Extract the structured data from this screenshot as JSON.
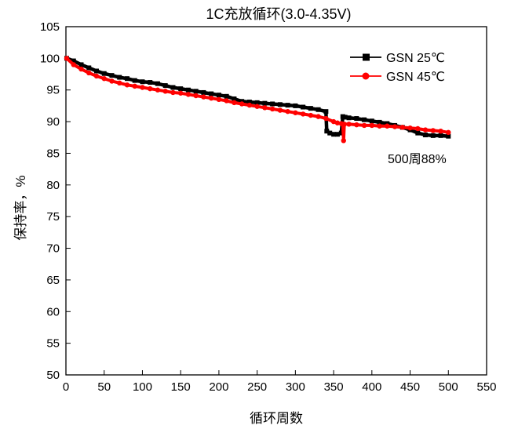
{
  "chart_data": {
    "type": "line",
    "title": "1C充放循环(3.0-4.35V)",
    "xlabel": "循环周数",
    "ylabel": "保持率，%",
    "xlim": [
      0,
      550
    ],
    "ylim": [
      50,
      105
    ],
    "xticks": [
      0,
      50,
      100,
      150,
      200,
      250,
      300,
      350,
      400,
      450,
      500,
      550
    ],
    "yticks": [
      50,
      55,
      60,
      65,
      70,
      75,
      80,
      85,
      90,
      95,
      100,
      105
    ],
    "grid": false,
    "legend_position": "top-right",
    "annotation": "500周88%",
    "series": [
      {
        "name": "GSN 25℃",
        "color": "#000000",
        "marker": "square",
        "x": [
          1,
          10,
          20,
          30,
          40,
          50,
          60,
          70,
          80,
          90,
          100,
          110,
          120,
          130,
          140,
          150,
          160,
          170,
          180,
          190,
          200,
          210,
          220,
          230,
          240,
          250,
          260,
          270,
          280,
          290,
          300,
          310,
          320,
          330,
          340,
          341,
          345,
          350,
          355,
          360,
          362,
          365,
          370,
          380,
          390,
          400,
          410,
          420,
          430,
          440,
          450,
          460,
          470,
          480,
          490,
          500
        ],
        "y": [
          100,
          99.6,
          99.0,
          98.5,
          98.0,
          97.6,
          97.3,
          97.0,
          96.8,
          96.5,
          96.3,
          96.2,
          96.0,
          95.7,
          95.4,
          95.2,
          95.0,
          94.8,
          94.6,
          94.4,
          94.2,
          94.0,
          93.6,
          93.2,
          93.1,
          93.0,
          92.9,
          92.8,
          92.7,
          92.6,
          92.5,
          92.3,
          92.1,
          91.9,
          91.6,
          88.5,
          88.2,
          88.0,
          88.0,
          88.2,
          90.8,
          90.7,
          90.6,
          90.5,
          90.3,
          90.1,
          89.9,
          89.7,
          89.4,
          89.1,
          88.7,
          88.2,
          87.9,
          87.8,
          87.8,
          87.7
        ]
      },
      {
        "name": "GSN 45℃",
        "color": "#ff0000",
        "marker": "circle",
        "x": [
          1,
          10,
          20,
          30,
          40,
          50,
          60,
          70,
          80,
          90,
          100,
          110,
          120,
          130,
          140,
          150,
          160,
          170,
          180,
          190,
          200,
          210,
          220,
          230,
          240,
          250,
          260,
          270,
          280,
          290,
          300,
          310,
          320,
          330,
          340,
          350,
          355,
          360,
          362,
          363,
          364,
          370,
          380,
          390,
          400,
          410,
          420,
          430,
          440,
          450,
          460,
          470,
          480,
          490,
          500
        ],
        "y": [
          100,
          99.0,
          98.3,
          97.7,
          97.2,
          96.8,
          96.4,
          96.1,
          95.8,
          95.6,
          95.4,
          95.2,
          95.0,
          94.8,
          94.6,
          94.5,
          94.3,
          94.1,
          93.9,
          93.7,
          93.5,
          93.3,
          93.0,
          92.8,
          92.6,
          92.4,
          92.2,
          92.0,
          91.8,
          91.6,
          91.4,
          91.2,
          91.0,
          90.8,
          90.5,
          90.0,
          89.8,
          89.7,
          89.6,
          87.0,
          89.6,
          89.6,
          89.5,
          89.4,
          89.4,
          89.3,
          89.3,
          89.2,
          89.1,
          89.0,
          88.9,
          88.7,
          88.6,
          88.5,
          88.3
        ]
      }
    ]
  }
}
